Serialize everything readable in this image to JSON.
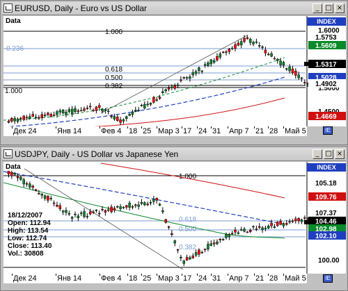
{
  "windows": [
    {
      "title": "EURUSD, Daily - Euro vs US Dollar",
      "data_label": "Data",
      "index_label": "INDEX",
      "x_labels": [
        "Дек 24",
        "Янв 14",
        "Фев 4",
        "18",
        "25",
        "Мар 3",
        "17",
        "24",
        "31",
        "Апр 7",
        "21",
        "28",
        "Май 5"
      ],
      "y_labels": [
        "1.6000",
        "1.5500",
        "1.5000",
        "1.4500"
      ],
      "price_tags": [
        {
          "text": "1.5753",
          "bg": "#ffffff",
          "fg": "#000000"
        },
        {
          "text": "1.5609",
          "bg": "#0a8a2a",
          "fg": "#ffffff"
        },
        {
          "text": "1.5317",
          "bg": "#000000",
          "fg": "#ffffff"
        },
        {
          "text": "1.5028",
          "bg": "#1f3fc0",
          "fg": "#ffffff"
        },
        {
          "text": "1.4902",
          "bg": "#ffffff",
          "fg": "#000000"
        },
        {
          "text": "1.4669",
          "bg": "#d01010",
          "fg": "#ffffff"
        }
      ],
      "fib_labels": [
        "1.000",
        "0.236",
        "0.618",
        "0.500",
        "0.382",
        "1.000"
      ]
    },
    {
      "title": "USDJPY, Daily - US Dollar vs Japanese Yen",
      "data_label": "Data",
      "index_label": "INDEX",
      "x_labels": [
        "Дек 24",
        "Янв 14",
        "Фев 4",
        "18",
        "25",
        "Мар 3",
        "17",
        "24",
        "31",
        "Апр 7",
        "21",
        "28",
        "Май 5"
      ],
      "y_labels": [
        "110.00",
        "105.00",
        "100.00"
      ],
      "price_tags": [
        {
          "text": "105.18",
          "bg": "#ffffff",
          "fg": "#000000"
        },
        {
          "text": "109.76",
          "bg": "#d01010",
          "fg": "#ffffff"
        },
        {
          "text": "107.37",
          "bg": "#ffffff",
          "fg": "#000000"
        },
        {
          "text": "104.46",
          "bg": "#000000",
          "fg": "#ffffff"
        },
        {
          "text": "102.98",
          "bg": "#0a8a2a",
          "fg": "#ffffff"
        },
        {
          "text": "102.10",
          "bg": "#1f3fc0",
          "fg": "#ffffff"
        }
      ],
      "fib_labels": [
        "1.000",
        "0.618",
        "0.500",
        "0.382"
      ],
      "ohlc": {
        "date": "18/12/2007",
        "open": "Open: 112.94",
        "high": "High: 113.54",
        "low": "Low: 112.74",
        "close": "Close: 113.40",
        "vol": "Vol.: 30808"
      }
    }
  ],
  "colors": {
    "up": "#0a8a2a",
    "down": "#ff0000",
    "ma_green": "#0a8a2a",
    "ma_blue": "#1f3fc0",
    "ma_red": "#d01010"
  }
}
